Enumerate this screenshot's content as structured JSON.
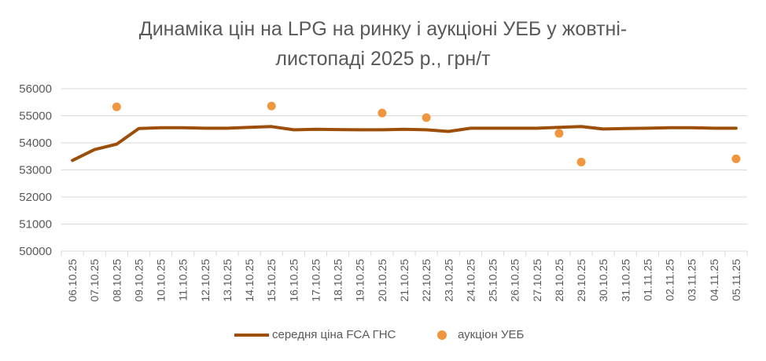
{
  "chart_data": {
    "type": "line",
    "title_line1": "Динаміка цін на LPG на ринку і аукціоні УЕБ у жовтні-",
    "title_line2": "листопаді 2025 р., грн/т",
    "xlabel": "",
    "ylabel": "",
    "ylim": [
      50000,
      56000
    ],
    "yticks": [
      50000,
      51000,
      52000,
      53000,
      54000,
      55000,
      56000
    ],
    "grid": true,
    "legend_position": "bottom",
    "categories": [
      "06.10.25",
      "07.10.25",
      "08.10.25",
      "09.10.25",
      "10.10.25",
      "11.10.25",
      "12.10.25",
      "13.10.25",
      "14.10.25",
      "15.10.25",
      "16.10.25",
      "17.10.25",
      "18.10.25",
      "19.10.25",
      "20.10.25",
      "21.10.25",
      "22.10.25",
      "23.10.25",
      "24.10.25",
      "25.10.25",
      "26.10.25",
      "27.10.25",
      "28.10.25",
      "29.10.25",
      "30.10.25",
      "31.10.25",
      "01.11.25",
      "02.11.25",
      "03.11.25",
      "04.11.25",
      "05.11.25"
    ],
    "series": [
      {
        "name": "середня ціна FCA ГНС",
        "kind": "line",
        "color": "#9C4F08",
        "values": [
          53350,
          53750,
          53950,
          54530,
          54560,
          54560,
          54540,
          54540,
          54570,
          54600,
          54480,
          54500,
          54490,
          54480,
          54480,
          54500,
          54480,
          54420,
          54540,
          54540,
          54540,
          54540,
          54570,
          54600,
          54510,
          54530,
          54540,
          54560,
          54560,
          54540,
          54540
        ]
      },
      {
        "name": "аукціон УЕБ",
        "kind": "scatter",
        "color": "#F0963F",
        "values": [
          null,
          null,
          55330,
          null,
          null,
          null,
          null,
          null,
          null,
          55360,
          null,
          null,
          null,
          null,
          55100,
          null,
          54930,
          null,
          null,
          null,
          null,
          null,
          54350,
          53290,
          null,
          null,
          null,
          null,
          null,
          null,
          53410
        ]
      }
    ]
  }
}
